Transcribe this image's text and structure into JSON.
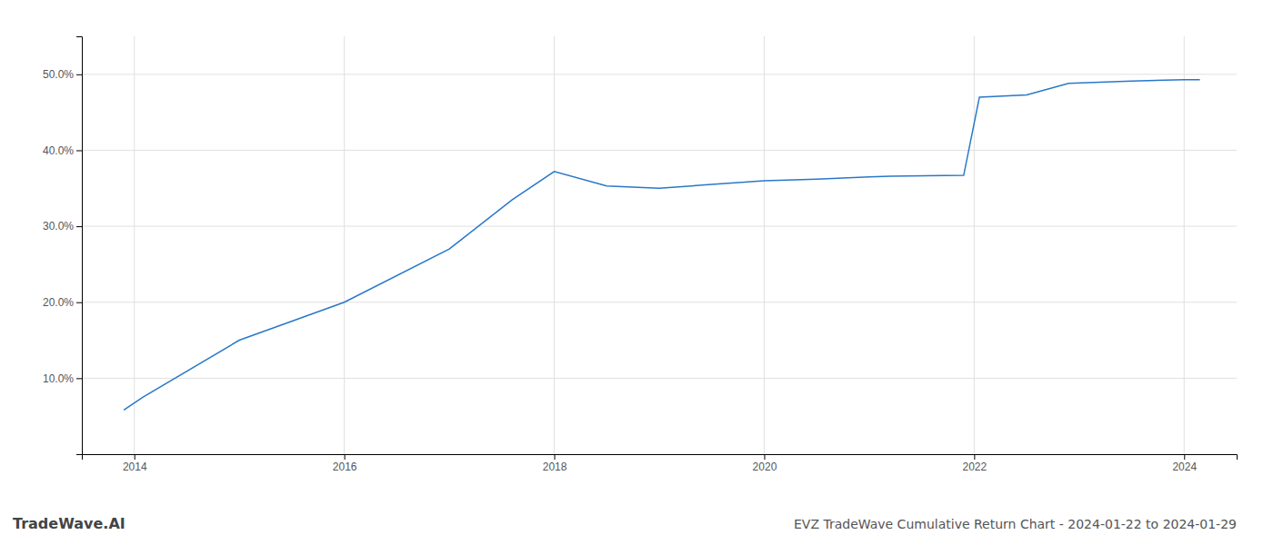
{
  "chart_data": {
    "type": "line",
    "title": "EVZ TradeWave Cumulative Return Chart - 2024-01-22 to 2024-01-29",
    "watermark": "TradeWave.AI",
    "x": [
      2013.9,
      2014.08,
      2015.0,
      2015.3,
      2016.0,
      2017.0,
      2017.6,
      2018.0,
      2018.5,
      2019.0,
      2019.5,
      2020.0,
      2020.5,
      2021.0,
      2021.2,
      2021.9,
      2022.05,
      2022.5,
      2022.9,
      2023.5,
      2024.0,
      2024.15
    ],
    "values": [
      5.8,
      7.5,
      15.0,
      16.5,
      20.0,
      27.0,
      33.5,
      37.2,
      35.3,
      35.0,
      35.5,
      36.0,
      36.2,
      36.5,
      36.6,
      36.7,
      47.0,
      47.3,
      48.8,
      49.1,
      49.3,
      49.3
    ],
    "color": "#2878c8",
    "xlim": [
      2013.5,
      2024.5
    ],
    "ylim": [
      0,
      55
    ],
    "xticks": [
      2014,
      2016,
      2018,
      2020,
      2022,
      2024
    ],
    "yticks": [
      {
        "value": 10.0,
        "label": "10.0%"
      },
      {
        "value": 20.0,
        "label": "20.0%"
      },
      {
        "value": 30.0,
        "label": "30.0%"
      },
      {
        "value": 40.0,
        "label": "40.0%"
      },
      {
        "value": 50.0,
        "label": "50.0%"
      }
    ],
    "grid": true
  }
}
